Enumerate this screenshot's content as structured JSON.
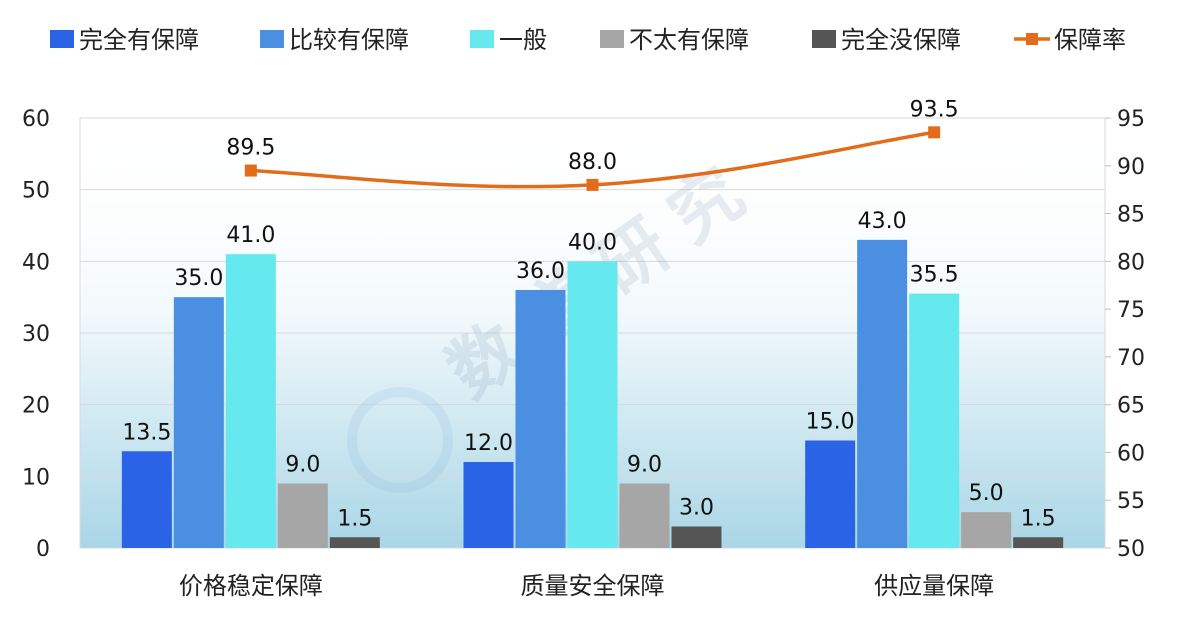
{
  "chart_data": {
    "type": "bar",
    "categories": [
      "价格稳定保障",
      "质量安全保障",
      "供应量保障"
    ],
    "series": [
      {
        "name": "完全有保障",
        "values": [
          13.5,
          12.0,
          15.0
        ],
        "color": "#2b63e6"
      },
      {
        "name": "比较有保障",
        "values": [
          35.0,
          36.0,
          43.0
        ],
        "color": "#4a8fe2"
      },
      {
        "name": "一般",
        "values": [
          41.0,
          40.0,
          35.5
        ],
        "color": "#66e8ef"
      },
      {
        "name": "不太有保障",
        "values": [
          9.0,
          9.0,
          5.0
        ],
        "color": "#a6a6a6"
      },
      {
        "name": "完全没保障",
        "values": [
          1.5,
          3.0,
          1.5
        ],
        "color": "#555555"
      }
    ],
    "line_series": {
      "name": "保障率",
      "values": [
        89.5,
        88.0,
        93.5
      ],
      "color": "#e36c1a",
      "axis": "right"
    },
    "ylim": [
      0,
      60
    ],
    "yticks": [
      "0",
      "10",
      "20",
      "30",
      "40",
      "50",
      "60"
    ],
    "y2lim": [
      50,
      95
    ],
    "y2ticks": [
      "50",
      "55",
      "60",
      "65",
      "70",
      "75",
      "80",
      "85",
      "90",
      "95"
    ],
    "legend_position": "top",
    "grid": true,
    "watermark": "数道研究"
  }
}
